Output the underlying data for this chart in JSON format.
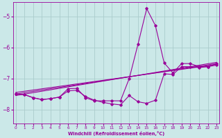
{
  "xlabel": "Windchill (Refroidissement éolien,°C)",
  "background_color": "#cbe8e8",
  "grid_color": "#aacccc",
  "line_color": "#990099",
  "x_ticks": [
    0,
    1,
    2,
    3,
    4,
    5,
    6,
    7,
    8,
    9,
    10,
    11,
    12,
    13,
    14,
    15,
    16,
    17,
    18,
    19,
    20,
    21,
    22,
    23
  ],
  "y_ticks": [
    -8,
    -7,
    -6,
    -5
  ],
  "xlim": [
    -0.3,
    23.3
  ],
  "ylim": [
    -8.45,
    -4.55
  ],
  "jagged1": [
    -7.5,
    -7.52,
    -7.62,
    -7.68,
    -7.65,
    -7.6,
    -7.33,
    -7.32,
    -7.62,
    -7.72,
    -7.72,
    -7.72,
    -7.72,
    -7.0,
    -5.9,
    -4.75,
    -5.3,
    -6.5,
    -6.82,
    -6.52,
    -6.52,
    -6.62,
    -6.62,
    -6.52
  ],
  "jagged2": [
    -7.5,
    -7.52,
    -7.62,
    -7.68,
    -7.65,
    -7.6,
    -7.4,
    -7.38,
    -7.58,
    -7.7,
    -7.77,
    -7.82,
    -7.85,
    -7.55,
    -7.75,
    -7.8,
    -7.7,
    -6.85,
    -6.87,
    -6.62,
    -6.62,
    -6.65,
    -6.62,
    -6.57
  ],
  "trend1_x": [
    0,
    23
  ],
  "trend1_y": [
    -7.5,
    -6.52
  ],
  "trend2_x": [
    0,
    23
  ],
  "trend2_y": [
    -7.55,
    -6.48
  ],
  "trend3_x": [
    0,
    23
  ],
  "trend3_y": [
    -7.45,
    -6.55
  ]
}
